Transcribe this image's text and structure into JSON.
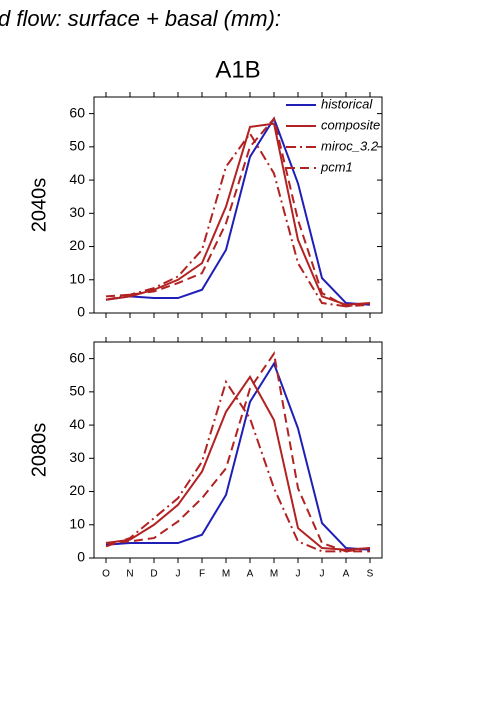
{
  "title": "d flow: surface + basal (mm):",
  "chart_data": [
    {
      "type": "line",
      "title": "A1B",
      "ylabel": "2040s",
      "ylim": [
        0,
        65
      ],
      "yticks": [
        0,
        10,
        20,
        30,
        40,
        50,
        60
      ],
      "legend": "upper right",
      "series": [
        {
          "name": "historical",
          "color": "#1f1fb8",
          "dash": "solid",
          "values": [
            4,
            5,
            4.5,
            4.5,
            7,
            19,
            47,
            58.5,
            39,
            10.5,
            3,
            2.5
          ]
        },
        {
          "name": "composite",
          "color": "#b22222",
          "dash": "solid",
          "values": [
            4,
            5,
            7,
            10,
            15,
            32,
            56,
            57,
            22,
            5,
            2.5,
            3
          ]
        },
        {
          "name": "miroc_3.2",
          "color": "#b22222",
          "dash": "dashdot",
          "values": [
            4,
            5.5,
            7.5,
            11,
            19,
            44,
            54,
            42,
            15,
            3,
            2,
            3
          ]
        },
        {
          "name": "pcm1",
          "color": "#b22222",
          "dash": "dashed",
          "values": [
            5,
            5.5,
            6.5,
            9,
            12,
            27,
            50,
            58.5,
            28,
            6,
            2,
            2.5
          ]
        }
      ]
    },
    {
      "type": "line",
      "ylabel": "2080s",
      "ylim": [
        0,
        65
      ],
      "yticks": [
        0,
        10,
        20,
        30,
        40,
        50,
        60
      ],
      "categories": [
        "O",
        "N",
        "D",
        "J",
        "F",
        "M",
        "A",
        "M",
        "J",
        "J",
        "A",
        "S"
      ],
      "series": [
        {
          "color": "#1f1fb8",
          "dash": "solid",
          "values": [
            4,
            4.5,
            4.5,
            4.5,
            7,
            19,
            47,
            58.5,
            39,
            10.5,
            3,
            2.5
          ]
        },
        {
          "color": "#b22222",
          "dash": "solid",
          "values": [
            4.5,
            5.5,
            10,
            16,
            26,
            44,
            54.5,
            41.5,
            9,
            3,
            2.5,
            3
          ]
        },
        {
          "color": "#b22222",
          "dash": "dashdot",
          "values": [
            3.5,
            6,
            12,
            18,
            29,
            53,
            42,
            21,
            5,
            2,
            2,
            3
          ]
        },
        {
          "color": "#b22222",
          "dash": "dashed",
          "values": [
            4.5,
            5,
            6,
            11,
            18,
            27,
            51,
            61.5,
            21,
            4.5,
            2,
            2
          ]
        }
      ]
    }
  ]
}
